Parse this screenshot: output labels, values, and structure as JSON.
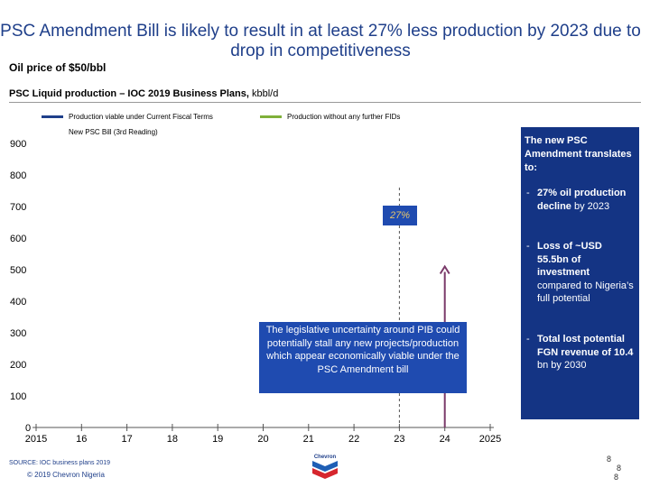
{
  "header": {
    "title": "PSC Amendment Bill is likely to result in at least 27% less production by 2023 due to drop in competitiveness",
    "subtitle": "Oil price of $50/bbl",
    "chart_heading": "PSC Liquid production – IOC 2019 Business Plans, ",
    "chart_unit": "kbbl/d"
  },
  "legend": {
    "items": [
      {
        "label": "Production viable under Current Fiscal Terms",
        "color": "#1f3f8a"
      },
      {
        "label": "Production without any further FIDs",
        "color": "#7fb03a"
      },
      {
        "label": "New PSC Bill (3rd Reading)",
        "color": "#ffffff"
      }
    ]
  },
  "chart_data": {
    "type": "line",
    "x": [
      "2015",
      "16",
      "17",
      "18",
      "19",
      "20",
      "21",
      "22",
      "23",
      "24",
      "2025"
    ],
    "yticks": [
      0,
      100,
      200,
      300,
      400,
      500,
      600,
      700,
      800,
      900
    ],
    "ylim": [
      0,
      900
    ],
    "series": [],
    "annotations": {
      "reference_line_x": "23",
      "arrow_x": "24",
      "arrow_top_value": 510,
      "arrow_color": "#7a3a6a",
      "reduction_label": "27%"
    },
    "grid": false
  },
  "sidebox": {
    "heading": "The new PSC Amendment translates to:",
    "items": [
      {
        "dash": "-",
        "bold": "27% oil production decline",
        "rest": " by 2023"
      },
      {
        "dash": "-",
        "bold": "Loss of ~USD 55.5bn of investment",
        "rest": " compared to Nigeria’s full potential"
      },
      {
        "dash": "-",
        "bold": "Total lost potential FGN revenue of 10.4",
        "rest": " bn by 2030"
      }
    ]
  },
  "callout": {
    "text": "The legislative uncertainty around PIB could potentially stall any new projects/production which appear economically viable under the PSC Amendment bill"
  },
  "footer": {
    "source": "SOURCE: IOC business plans 2019",
    "copyright": "© 2019 Chevron Nigeria",
    "page_numbers": [
      "8",
      "8",
      "8"
    ],
    "logo_text": "Chevron"
  }
}
